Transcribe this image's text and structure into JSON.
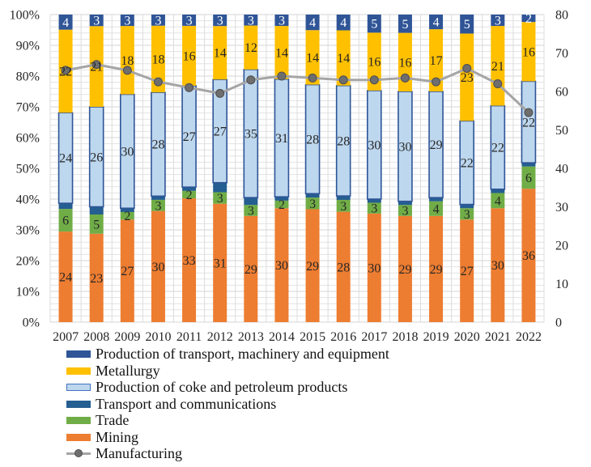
{
  "chart_data": {
    "type": "bar",
    "subtype": "100% stacked bar with line on secondary axis",
    "title": "",
    "xlabel": "",
    "ylabel": "",
    "categories": [
      "2007",
      "2008",
      "2009",
      "2010",
      "2011",
      "2012",
      "2013",
      "2014",
      "2015",
      "2016",
      "2017",
      "2018",
      "2019",
      "2020",
      "2021",
      "2022"
    ],
    "y_left": {
      "range": [
        0,
        100
      ],
      "unit": "%",
      "ticks": [
        "0%",
        "10%",
        "20%",
        "30%",
        "40%",
        "50%",
        "60%",
        "70%",
        "80%",
        "90%",
        "100%"
      ]
    },
    "y_right": {
      "range": [
        0,
        80
      ],
      "ticks": [
        "0",
        "10",
        "20",
        "30",
        "40",
        "50",
        "60",
        "70",
        "80"
      ]
    },
    "grid": true,
    "legend_position": "bottom-left",
    "series": [
      {
        "key": "machinery",
        "name": "Production of transport, machinery and equipment",
        "color": "#2F5597",
        "show_labels": true,
        "values": [
          4,
          3,
          3,
          3,
          3,
          3,
          3,
          3,
          4,
          4,
          5,
          5,
          4,
          5,
          3,
          2
        ]
      },
      {
        "key": "metallurgy",
        "name": "Metallurgy",
        "color": "#FFC000",
        "show_labels": true,
        "values": [
          22,
          21,
          18,
          18,
          16,
          14,
          12,
          14,
          14,
          14,
          16,
          16,
          17,
          23,
          21,
          16
        ]
      },
      {
        "key": "coke",
        "name": "Production of coke and petroleum products",
        "color": "#BDD7EE",
        "show_labels": true,
        "values": [
          24,
          26,
          30,
          28,
          27,
          27,
          35,
          31,
          28,
          28,
          30,
          30,
          29,
          22,
          22,
          22
        ]
      },
      {
        "key": "transport",
        "name": "Transport and communications",
        "color": "#255E91",
        "show_labels": false,
        "values": [
          1.5,
          2,
          1,
          1,
          1,
          2.5,
          2,
          1,
          1,
          1,
          1,
          1,
          1,
          1,
          1,
          1
        ]
      },
      {
        "key": "trade",
        "name": "Trade",
        "color": "#70AD47",
        "show_labels": true,
        "values": [
          6,
          5,
          2,
          3,
          2,
          3,
          3,
          2,
          3,
          3,
          3,
          3,
          4,
          3,
          4,
          6
        ]
      },
      {
        "key": "mining",
        "name": "Mining",
        "color": "#ED7D31",
        "show_labels": true,
        "values": [
          24,
          23,
          27,
          30,
          33,
          31,
          29,
          30,
          29,
          28,
          30,
          29,
          29,
          27,
          30,
          36
        ]
      }
    ],
    "line_series": {
      "key": "manufacturing",
      "name": "Manufacturing",
      "axis": "right",
      "color": "#A5A5A5",
      "marker_color": "#6E6E6E",
      "values": [
        65.5,
        67,
        65.5,
        62.5,
        61,
        59.5,
        63,
        64,
        63.5,
        63,
        63,
        63.5,
        62.5,
        66,
        62,
        54.5
      ]
    }
  }
}
